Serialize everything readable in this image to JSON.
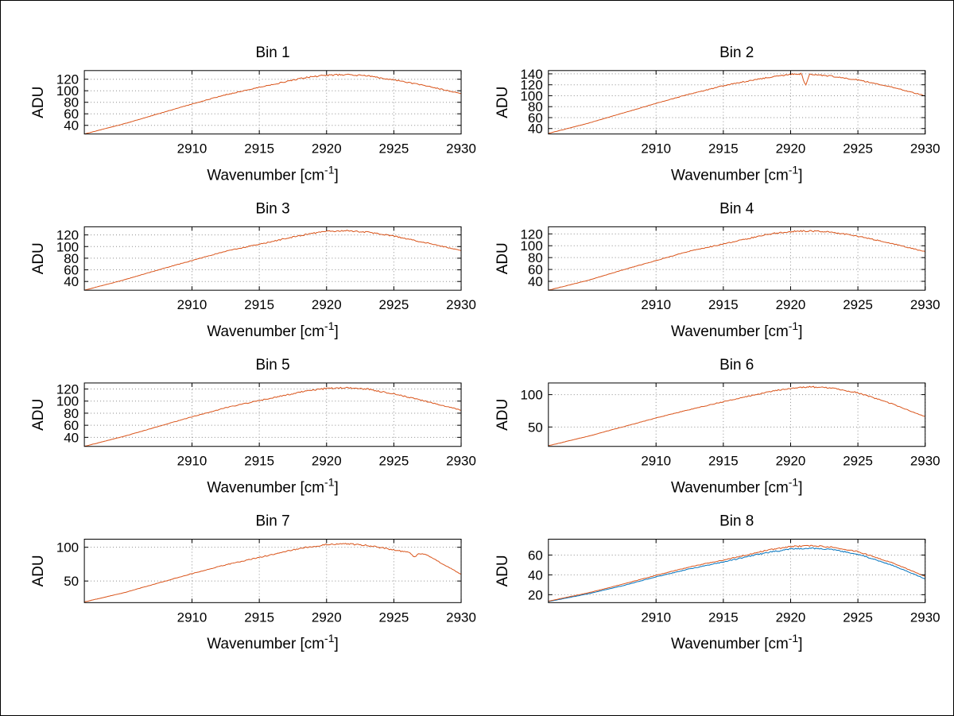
{
  "figure": {
    "background": "#ffffff",
    "border_color": "#000000",
    "grid_color": "#8c8c8c",
    "rows": 4,
    "cols": 2
  },
  "colors": {
    "line_orange": "#d95319",
    "line_blue": "#0072bd"
  },
  "chart_data": [
    {
      "type": "line",
      "title": "Bin 1",
      "xlabel": "Wavenumber [cm^{-1}]",
      "ylabel": "ADU",
      "xlim": [
        2902,
        2930
      ],
      "ylim": [
        25,
        135
      ],
      "xticks": [
        2910,
        2915,
        2920,
        2925,
        2930
      ],
      "yticks": [
        40,
        60,
        80,
        100,
        120
      ],
      "grid": true,
      "series": [
        {
          "name": "orange",
          "color": "#d95319",
          "noise": 1.3,
          "x": [
            2902,
            2905,
            2907.5,
            2910,
            2912.5,
            2915,
            2917,
            2918.5,
            2920,
            2921.5,
            2923,
            2925,
            2927.5,
            2930
          ],
          "y": [
            25,
            43,
            60,
            77,
            93,
            106,
            116,
            123,
            127,
            128,
            126,
            119,
            108,
            95
          ]
        }
      ]
    },
    {
      "type": "line",
      "title": "Bin 2",
      "xlabel": "Wavenumber [cm^{-1}]",
      "ylabel": "ADU",
      "xlim": [
        2902,
        2930
      ],
      "ylim": [
        30,
        146
      ],
      "xticks": [
        2910,
        2915,
        2920,
        2925,
        2930
      ],
      "yticks": [
        40,
        60,
        80,
        100,
        120,
        140
      ],
      "grid": true,
      "series": [
        {
          "name": "orange",
          "color": "#d95319",
          "noise": 1.3,
          "x": [
            2902,
            2905,
            2907.5,
            2910,
            2912.5,
            2915,
            2917,
            2918.5,
            2920,
            2920.8,
            2921.1,
            2921.4,
            2923,
            2925,
            2927.5,
            2930
          ],
          "y": [
            31,
            50,
            68,
            86,
            103,
            118,
            128,
            134,
            139,
            140,
            118,
            139,
            136,
            129,
            116,
            100
          ]
        }
      ]
    },
    {
      "type": "line",
      "title": "Bin 3",
      "xlabel": "Wavenumber [cm^{-1}]",
      "ylabel": "ADU",
      "xlim": [
        2902,
        2930
      ],
      "ylim": [
        25,
        134
      ],
      "xticks": [
        2910,
        2915,
        2920,
        2925,
        2930
      ],
      "yticks": [
        40,
        60,
        80,
        100,
        120
      ],
      "grid": true,
      "series": [
        {
          "name": "orange",
          "color": "#d95319",
          "noise": 1.3,
          "x": [
            2902,
            2905,
            2907.5,
            2910,
            2912.5,
            2915,
            2917,
            2918.5,
            2920,
            2921.5,
            2923,
            2925,
            2927.5,
            2930
          ],
          "y": [
            25,
            43,
            60,
            76,
            92,
            104,
            114,
            121,
            126,
            127,
            125,
            118,
            106,
            93
          ]
        }
      ]
    },
    {
      "type": "line",
      "title": "Bin 4",
      "xlabel": "Wavenumber [cm^{-1}]",
      "ylabel": "ADU",
      "xlim": [
        2902,
        2930
      ],
      "ylim": [
        25,
        132
      ],
      "xticks": [
        2910,
        2915,
        2920,
        2925,
        2930
      ],
      "yticks": [
        40,
        60,
        80,
        100,
        120
      ],
      "grid": true,
      "series": [
        {
          "name": "orange",
          "color": "#d95319",
          "noise": 1.3,
          "x": [
            2902,
            2905,
            2907.5,
            2910,
            2912.5,
            2915,
            2917,
            2918.5,
            2920,
            2921.5,
            2923,
            2925,
            2927.5,
            2930
          ],
          "y": [
            25,
            42,
            59,
            75,
            91,
            103,
            113,
            120,
            124,
            125,
            123,
            116,
            104,
            90
          ]
        }
      ]
    },
    {
      "type": "line",
      "title": "Bin 5",
      "xlabel": "Wavenumber [cm^{-1}]",
      "ylabel": "ADU",
      "xlim": [
        2902,
        2930
      ],
      "ylim": [
        25,
        130
      ],
      "xticks": [
        2910,
        2915,
        2920,
        2925,
        2930
      ],
      "yticks": [
        40,
        60,
        80,
        100,
        120
      ],
      "grid": true,
      "series": [
        {
          "name": "orange",
          "color": "#d95319",
          "noise": 1.3,
          "x": [
            2902,
            2905,
            2907.5,
            2910,
            2912.5,
            2915,
            2917,
            2918.5,
            2920,
            2921.5,
            2923,
            2925,
            2927.5,
            2930
          ],
          "y": [
            25,
            42,
            58,
            74,
            89,
            101,
            110,
            117,
            121,
            122,
            120,
            112,
            99,
            85
          ]
        }
      ]
    },
    {
      "type": "line",
      "title": "Bin 6",
      "xlabel": "Wavenumber [cm^{-1}]",
      "ylabel": "ADU",
      "xlim": [
        2902,
        2930
      ],
      "ylim": [
        20,
        118
      ],
      "xticks": [
        2910,
        2915,
        2920,
        2925,
        2930
      ],
      "yticks": [
        50,
        100
      ],
      "grid": true,
      "series": [
        {
          "name": "orange",
          "color": "#d95319",
          "noise": 1.1,
          "x": [
            2902,
            2905,
            2907.5,
            2910,
            2912.5,
            2915,
            2917,
            2918.5,
            2920,
            2921.5,
            2923,
            2925,
            2927.5,
            2930
          ],
          "y": [
            21,
            36,
            50,
            64,
            77,
            89,
            98,
            105,
            110,
            112,
            110,
            103,
            86,
            66
          ]
        }
      ]
    },
    {
      "type": "line",
      "title": "Bin 7",
      "xlabel": "Wavenumber [cm^{-1}]",
      "ylabel": "ADU",
      "xlim": [
        2902,
        2930
      ],
      "ylim": [
        18,
        112
      ],
      "xticks": [
        2910,
        2915,
        2920,
        2925,
        2930
      ],
      "yticks": [
        50,
        100
      ],
      "grid": true,
      "series": [
        {
          "name": "orange",
          "color": "#d95319",
          "noise": 1.1,
          "x": [
            2902,
            2905,
            2907.5,
            2910,
            2912.5,
            2915,
            2917,
            2918.5,
            2920,
            2921.5,
            2923,
            2925,
            2926.2,
            2926.5,
            2926.9,
            2927.5,
            2930
          ],
          "y": [
            19,
            33,
            47,
            61,
            74,
            85,
            94,
            100,
            104,
            105,
            103,
            96,
            92,
            85,
            91,
            88,
            60
          ]
        }
      ]
    },
    {
      "type": "line",
      "title": "Bin 8",
      "xlabel": "Wavenumber [cm^{-1}]",
      "ylabel": "ADU",
      "xlim": [
        2902,
        2930
      ],
      "ylim": [
        12,
        76
      ],
      "xticks": [
        2910,
        2915,
        2920,
        2925,
        2930
      ],
      "yticks": [
        20,
        40,
        60
      ],
      "grid": true,
      "series": [
        {
          "name": "blue",
          "color": "#0072bd",
          "noise": 0.7,
          "x": [
            2902,
            2905,
            2907.5,
            2910,
            2912.5,
            2915,
            2917,
            2918.5,
            2920,
            2921.5,
            2923,
            2925,
            2927.5,
            2930
          ],
          "y": [
            13,
            21,
            29,
            38,
            46,
            53,
            59,
            63,
            66,
            67,
            65.5,
            61,
            50,
            36
          ]
        },
        {
          "name": "orange",
          "color": "#d95319",
          "noise": 0.7,
          "x": [
            2902,
            2905,
            2907.5,
            2910,
            2912.5,
            2915,
            2917,
            2918.5,
            2920,
            2921.5,
            2923,
            2925,
            2927.5,
            2930
          ],
          "y": [
            13.5,
            22,
            30.5,
            39.5,
            48,
            55,
            61,
            65.5,
            68.5,
            69.5,
            68,
            63.5,
            52.5,
            38.5
          ]
        }
      ]
    }
  ]
}
